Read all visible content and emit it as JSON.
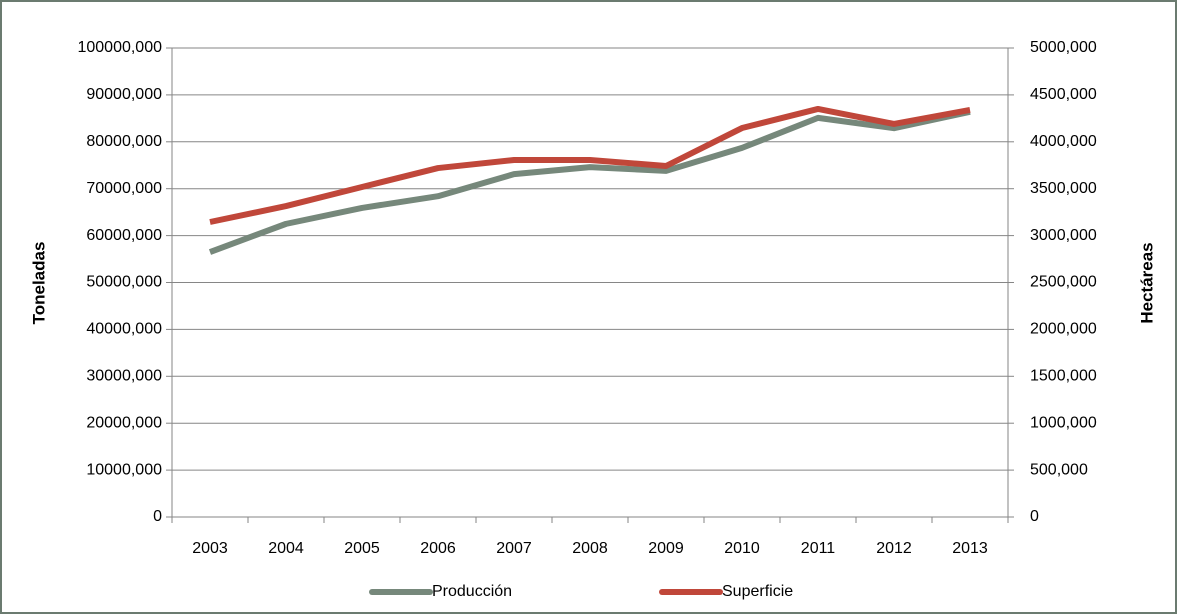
{
  "chart_data": {
    "type": "line",
    "categories": [
      "2003",
      "2004",
      "2005",
      "2006",
      "2007",
      "2008",
      "2009",
      "2010",
      "2011",
      "2012",
      "2013"
    ],
    "ylabel": "Toneladas",
    "y2label": "Hectáreas",
    "ylim": [
      0,
      100000
    ],
    "yticks": [
      0,
      {
        "value": 10000,
        "label": "10000,000"
      },
      {
        "value": 20000,
        "label": "20000,000"
      },
      {
        "value": 30000,
        "label": "30000,000"
      },
      {
        "value": 40000,
        "label": "40000,000"
      },
      {
        "value": 50000,
        "label": "50000,000"
      },
      {
        "value": 60000,
        "label": "60000,000"
      },
      {
        "value": 70000,
        "label": "70000,000"
      },
      {
        "value": 80000,
        "label": "80000,000"
      },
      {
        "value": 90000,
        "label": "90000,000"
      },
      {
        "value": 100000,
        "label": "100000,000"
      }
    ],
    "y2lim": [
      0,
      5000
    ],
    "y2ticks": [
      0,
      {
        "value": 500,
        "label": "500,000"
      },
      {
        "value": 1000,
        "label": "1000,000"
      },
      {
        "value": 1500,
        "label": "1500,000"
      },
      {
        "value": 2000,
        "label": "2000,000"
      },
      {
        "value": 2500,
        "label": "2500,000"
      },
      {
        "value": 3000,
        "label": "3000,000"
      },
      {
        "value": 3500,
        "label": "3500,000"
      },
      {
        "value": 4000,
        "label": "4000,000"
      },
      {
        "value": 4500,
        "label": "4500,000"
      },
      {
        "value": 5000,
        "label": "5000,000"
      }
    ],
    "grid": true,
    "legend": "bottom",
    "series": [
      {
        "name": "Producción",
        "color": "#76887b",
        "axis": "y",
        "values": [
          56500,
          62500,
          65900,
          68400,
          73100,
          74600,
          73800,
          78700,
          85100,
          82900,
          86400
        ]
      },
      {
        "name": "Superficie",
        "color": "#c0473a",
        "axis": "y2",
        "values": [
          3145,
          3315,
          3518,
          3720,
          3806,
          3806,
          3742,
          4147,
          4350,
          4190,
          4340
        ]
      }
    ]
  }
}
